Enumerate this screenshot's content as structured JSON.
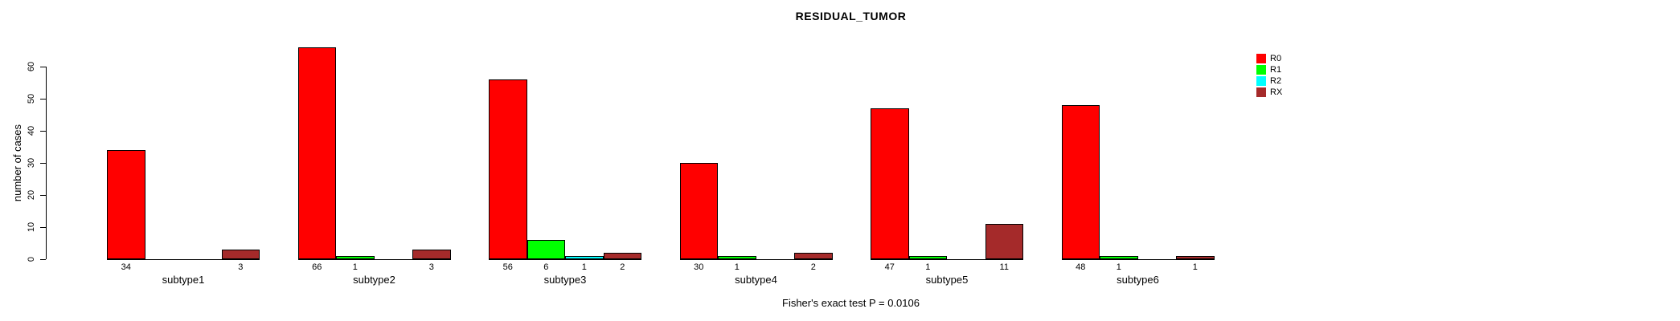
{
  "title": "RESIDUAL_TUMOR",
  "footer": "Fisher's exact test P = 0.0106",
  "colors": {
    "R0": "#FF0000",
    "R1": "#00FF00",
    "R2": "#00FFFF",
    "RX": "#A52A2A",
    "background": "#FFFFFF",
    "axis": "#000000"
  },
  "chart_data": {
    "type": "bar",
    "title": "RESIDUAL_TUMOR",
    "xlabel": "",
    "ylabel": "number of cases",
    "annotation": "Fisher's exact test P = 0.0106",
    "categories": [
      "subtype1",
      "subtype2",
      "subtype3",
      "subtype4",
      "subtype5",
      "subtype6"
    ],
    "series": [
      {
        "name": "R0",
        "color": "#FF0000",
        "values": [
          34,
          66,
          56,
          30,
          47,
          48
        ]
      },
      {
        "name": "R1",
        "color": "#00FF00",
        "values": [
          0,
          1,
          6,
          1,
          1,
          1
        ]
      },
      {
        "name": "R2",
        "color": "#00FFFF",
        "values": [
          0,
          0,
          1,
          0,
          0,
          0
        ]
      },
      {
        "name": "RX",
        "color": "#A52A2A",
        "values": [
          3,
          3,
          2,
          2,
          11,
          1
        ]
      }
    ],
    "value_labels_rule": "shown under each bar only when value is nonzero",
    "ylim": [
      0,
      60
    ],
    "yticks": [
      0,
      10,
      20,
      30,
      40,
      50,
      60
    ],
    "grid": false,
    "legend_position": "right-outside-of-bars",
    "bar_style": "grouped, black 1px borders, zero bars drawn as flat baseline"
  }
}
